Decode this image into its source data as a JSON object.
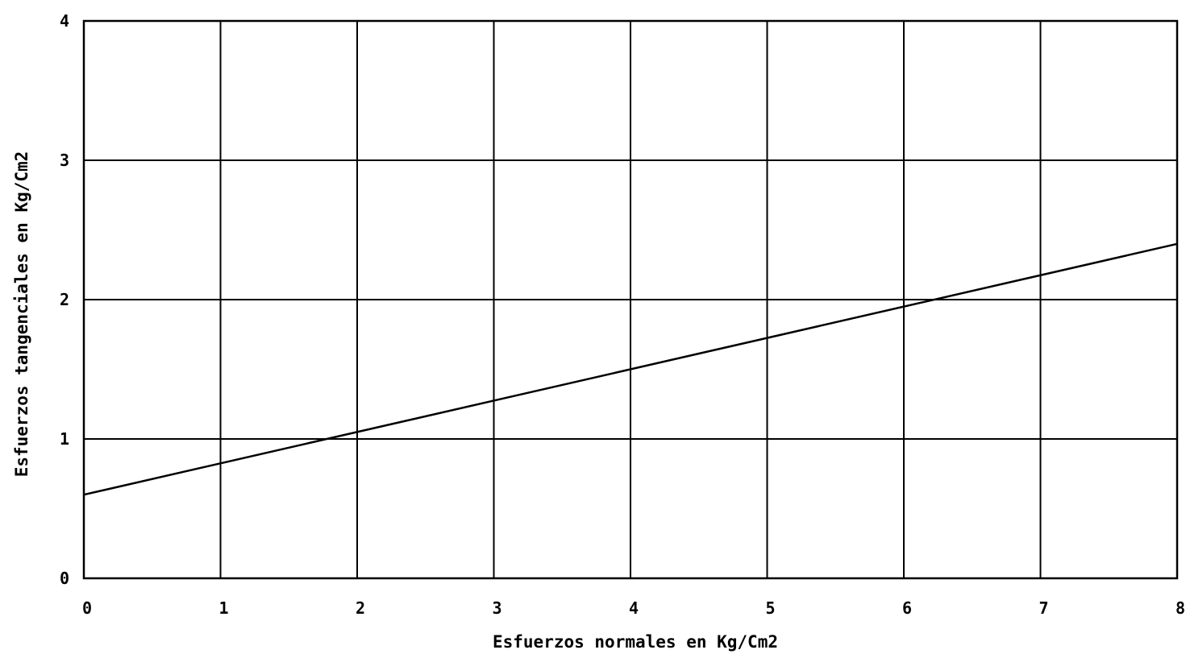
{
  "chart_data": {
    "type": "line",
    "title": "",
    "xlabel": "Esfuerzos normales en Kg/Cm2",
    "ylabel": "Esfuerzos tangenciales en Kg/Cm2",
    "xlim": [
      0,
      8
    ],
    "ylim": [
      0,
      4
    ],
    "x_ticks": [
      "0",
      "1",
      "2",
      "3",
      "4",
      "5",
      "6",
      "7",
      "8"
    ],
    "y_ticks": [
      "0",
      "1",
      "2",
      "3",
      "4"
    ],
    "grid": true,
    "legend": "none",
    "series": [
      {
        "x": [
          0,
          8
        ],
        "values": [
          0.6,
          2.4
        ]
      }
    ],
    "colors": {
      "line": "#000000",
      "grid": "#000000",
      "background": "#ffffff"
    }
  }
}
